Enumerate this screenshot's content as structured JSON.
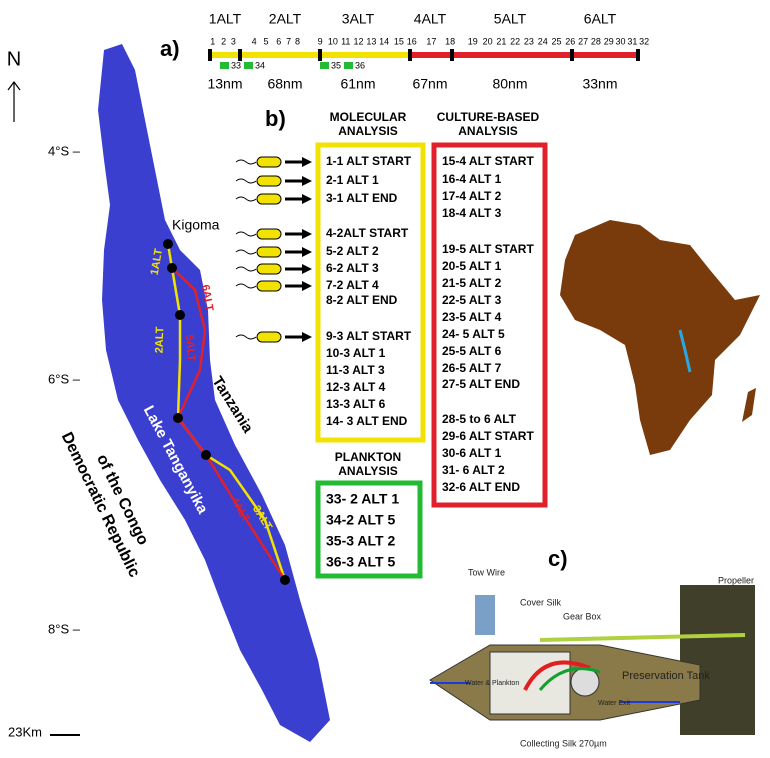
{
  "panel_a": {
    "label": "a)",
    "segments": [
      {
        "name": "1ALT",
        "distance": "13nm"
      },
      {
        "name": "2ALT",
        "distance": "68nm"
      },
      {
        "name": "3ALT",
        "distance": "61nm"
      },
      {
        "name": "4ALT",
        "distance": "67nm"
      },
      {
        "name": "5ALT",
        "distance": "80nm"
      },
      {
        "name": "6ALT",
        "distance": "33nm"
      }
    ],
    "stations": [
      "1",
      "2",
      "3",
      "4",
      "5",
      "6",
      "7",
      "8",
      "9",
      "10",
      "11",
      "12",
      "13",
      "14",
      "15",
      "16",
      "17",
      "18",
      "19",
      "20",
      "21",
      "22",
      "23",
      "24",
      "25",
      "26",
      "27",
      "28",
      "29",
      "30",
      "31",
      "32"
    ],
    "plankton_stations": [
      "33",
      "34",
      "35",
      "36"
    ]
  },
  "panel_b": {
    "label": "b)",
    "molecular": {
      "title": [
        "MOLECULAR",
        "ANALYSIS"
      ],
      "items": [
        "1-1 ALT START",
        "2-1 ALT 1",
        "3-1 ALT END",
        "4-2ALT START",
        "5-2 ALT 2",
        "6-2 ALT 3",
        "7-2 ALT 4",
        "8-2 ALT END",
        "9-3 ALT START",
        "10-3 ALT 1",
        "11-3 ALT 3",
        "12-3 ALT 4",
        "13-3 ALT 6",
        "14- 3 ALT END"
      ]
    },
    "culture": {
      "title": [
        "CULTURE-BASED",
        "ANALYSIS"
      ],
      "items": [
        "15-4 ALT START",
        "16-4 ALT 1",
        "17-4 ALT 2",
        "18-4 ALT 3",
        "19-5 ALT START",
        "20-5 ALT 1",
        "21-5 ALT 2",
        "22-5 ALT 3",
        "23-5 ALT 4",
        "24- 5 ALT 5",
        "25-5 ALT 6",
        "26-5 ALT 7",
        "27-5 ALT END",
        "28-5 to 6 ALT",
        "29-6 ALT START",
        "30-6 ALT 1",
        "31- 6 ALT 2",
        "32-6 ALT END"
      ]
    },
    "plankton": {
      "title": [
        "PLANKTON",
        "ANALYSIS"
      ],
      "items": [
        "33- 2 ALT 1",
        "34-2 ALT 5",
        "35-3 ALT 2",
        "36-3 ALT 5"
      ]
    }
  },
  "map": {
    "north": "N",
    "latitudes": [
      "4°S –",
      "6°S –",
      "8°S –"
    ],
    "kigoma": "Kigoma",
    "tanzania": "Tanzania",
    "lake": "Lake Tanganyika",
    "country": [
      "Democratic Republic",
      "of the Congo"
    ],
    "route_labels": [
      "1ALT",
      "6ALT",
      "2ALT",
      "5ALT",
      "3ALT",
      "4ALT"
    ],
    "scale": "23Km"
  },
  "panel_c": {
    "label": "c)",
    "parts": [
      "Tow Wire",
      "Cover Silk",
      "Gear Box",
      "Propeller",
      "Preservation Tank",
      "Water & Plankton",
      "Water Exit",
      "Collecting Silk 270µm"
    ]
  }
}
